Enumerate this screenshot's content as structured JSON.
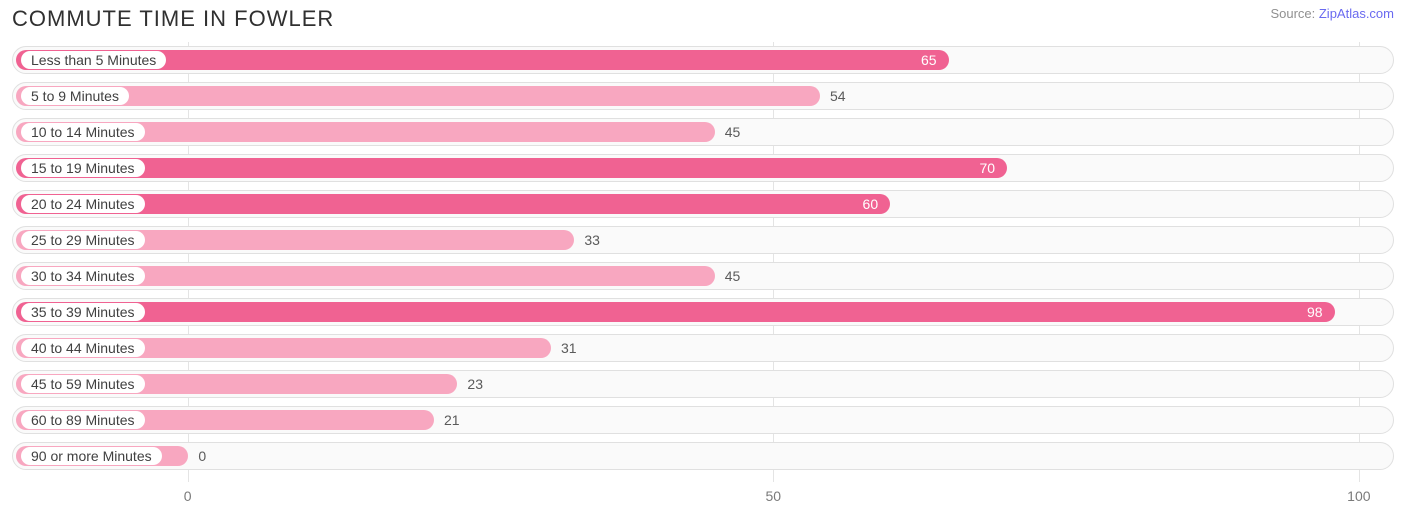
{
  "chart": {
    "type": "bar-horizontal",
    "title": "COMMUTE TIME IN FOWLER",
    "source_prefix": "Source: ",
    "source_link": "ZipAtlas.com",
    "title_color": "#303030",
    "title_fontsize": 22,
    "source_color": "#909090",
    "link_color": "#6a6af0",
    "background_color": "#ffffff",
    "row_track_bg": "#fafafa",
    "row_border_color": "#e0e0e0",
    "grid_color": "#e4e4e4",
    "pill_bg": "#ffffff",
    "pill_text_color": "#404040",
    "label_fontsize": 14,
    "value_fontsize": 14,
    "bar_colors": {
      "dark": "#f06292",
      "light": "#f8a7c0"
    },
    "value_text_inside_color": "#ffffff",
    "value_text_outside_color": "#5a5a5a",
    "value_inside_threshold": 55,
    "xmin": -15,
    "xmax": 103,
    "xticks": [
      0,
      50,
      100
    ],
    "data": [
      {
        "label": "Less than 5 Minutes",
        "value": 65,
        "shade": "dark"
      },
      {
        "label": "5 to 9 Minutes",
        "value": 54,
        "shade": "light"
      },
      {
        "label": "10 to 14 Minutes",
        "value": 45,
        "shade": "light"
      },
      {
        "label": "15 to 19 Minutes",
        "value": 70,
        "shade": "dark"
      },
      {
        "label": "20 to 24 Minutes",
        "value": 60,
        "shade": "dark"
      },
      {
        "label": "25 to 29 Minutes",
        "value": 33,
        "shade": "light"
      },
      {
        "label": "30 to 34 Minutes",
        "value": 45,
        "shade": "light"
      },
      {
        "label": "35 to 39 Minutes",
        "value": 98,
        "shade": "dark"
      },
      {
        "label": "40 to 44 Minutes",
        "value": 31,
        "shade": "light"
      },
      {
        "label": "45 to 59 Minutes",
        "value": 23,
        "shade": "light"
      },
      {
        "label": "60 to 89 Minutes",
        "value": 21,
        "shade": "light"
      },
      {
        "label": "90 or more Minutes",
        "value": 0,
        "shade": "light"
      }
    ]
  }
}
